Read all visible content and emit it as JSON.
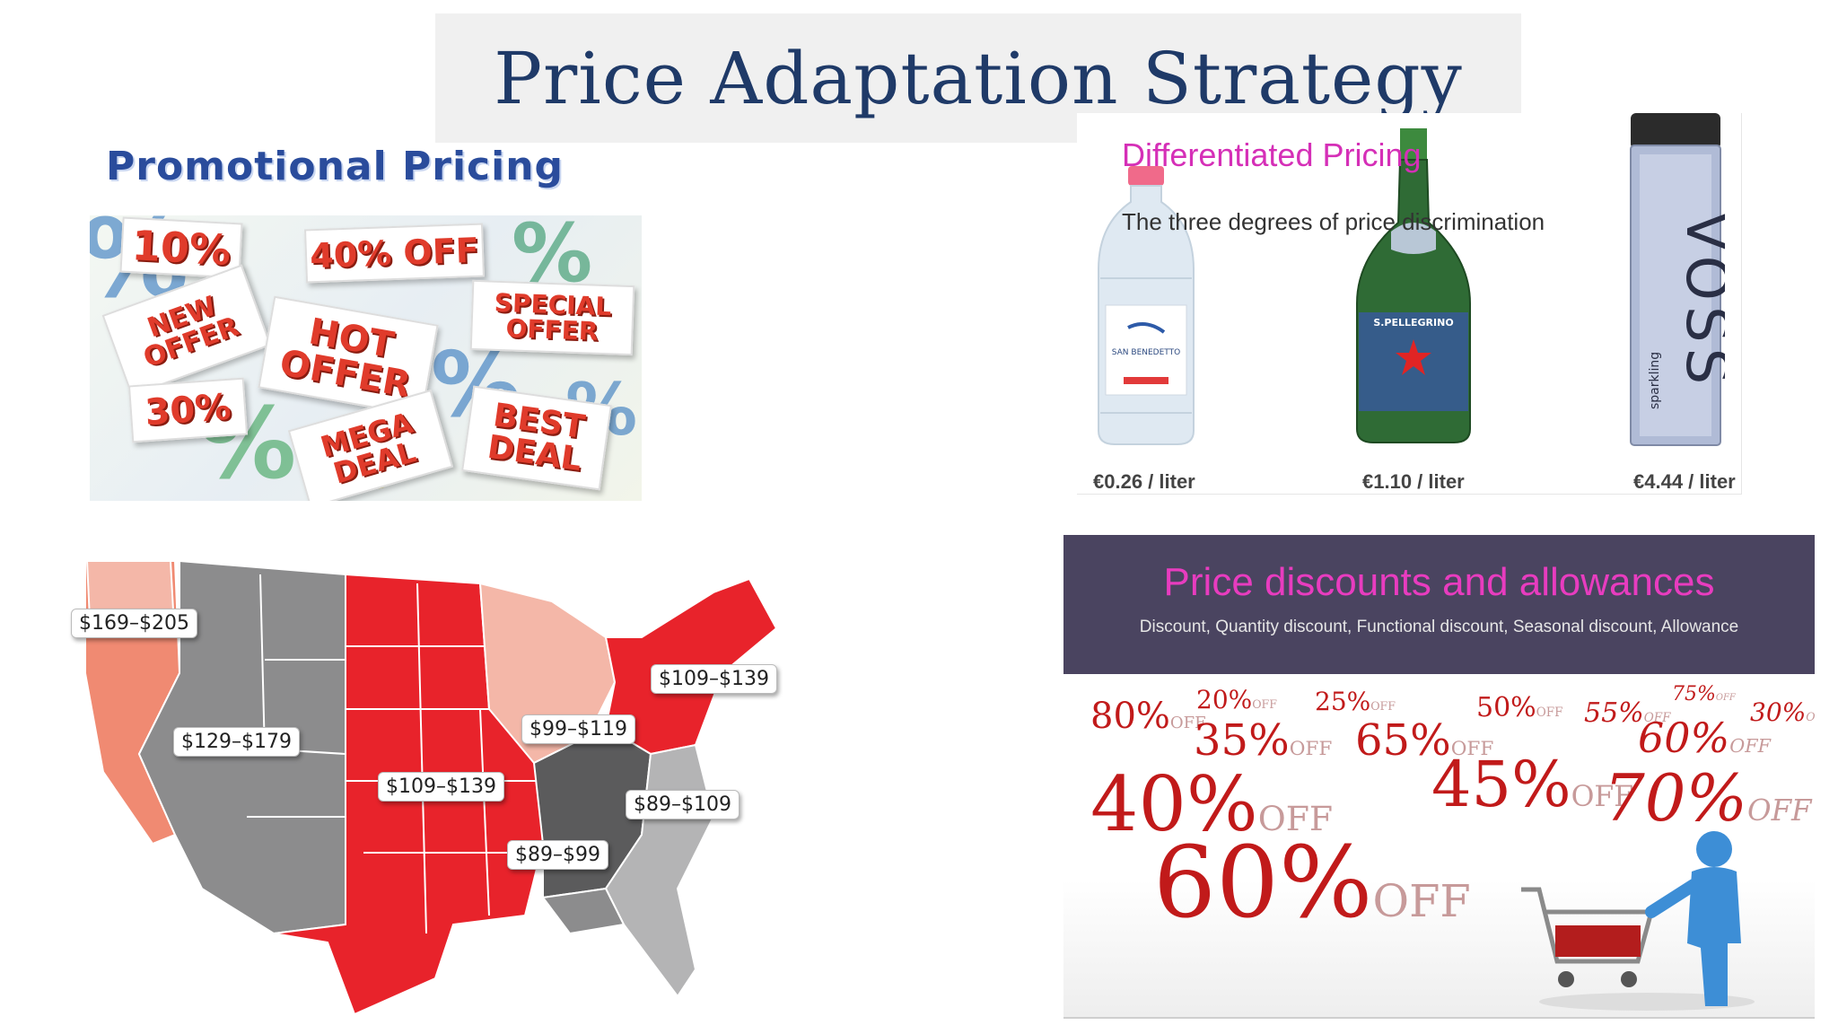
{
  "title": "Price Adaptation Strategy",
  "promotional": {
    "heading": "Promotional Pricing",
    "tags": [
      "10%",
      "40% OFF",
      "NEW OFFER",
      "HOT OFFER",
      "SPECIAL OFFER",
      "30%",
      "MEGA DEAL",
      "BEST DEAL"
    ]
  },
  "differentiated": {
    "heading": "Differentiated Pricing",
    "subtitle": "The three degrees of price discrimination",
    "bottles": [
      {
        "brand": "SAN BENEDETTO",
        "price": "€0.26 / liter"
      },
      {
        "brand": "S.PELLEGRINO",
        "price": "€1.10 / liter"
      },
      {
        "brand": "VOSS",
        "price": "€4.44 / liter",
        "tagline": "sparkling"
      }
    ]
  },
  "map": {
    "labels": [
      "$169–$205",
      "$129–$179",
      "$109–$139",
      "$99–$119",
      "$109–$139",
      "$89–$109",
      "$89–$99"
    ]
  },
  "discounts": {
    "heading": "Price discounts and allowances",
    "subtitle": "Discount, Quantity discount, Functional discount, Seasonal discount, Allowance",
    "percents": [
      "80%",
      "20%",
      "25%",
      "50%",
      "55%",
      "75%",
      "30%",
      "35%",
      "65%",
      "60%",
      "40%",
      "45%",
      "70%",
      "60%"
    ],
    "off_word": "OFF"
  },
  "colors": {
    "title": "#1f3a68",
    "promo_heading": "#2a4c9c",
    "tag_text": "#e03b2b",
    "diff_heading": "#d52fb7",
    "banner": "#4a4460",
    "discount_red": "#c11a1a",
    "map_red": "#e8232b",
    "map_salmon": "#f08a72",
    "map_pink": "#f4b7a8",
    "map_gray": "#8c8c8d",
    "map_dark": "#5b5b5c"
  }
}
